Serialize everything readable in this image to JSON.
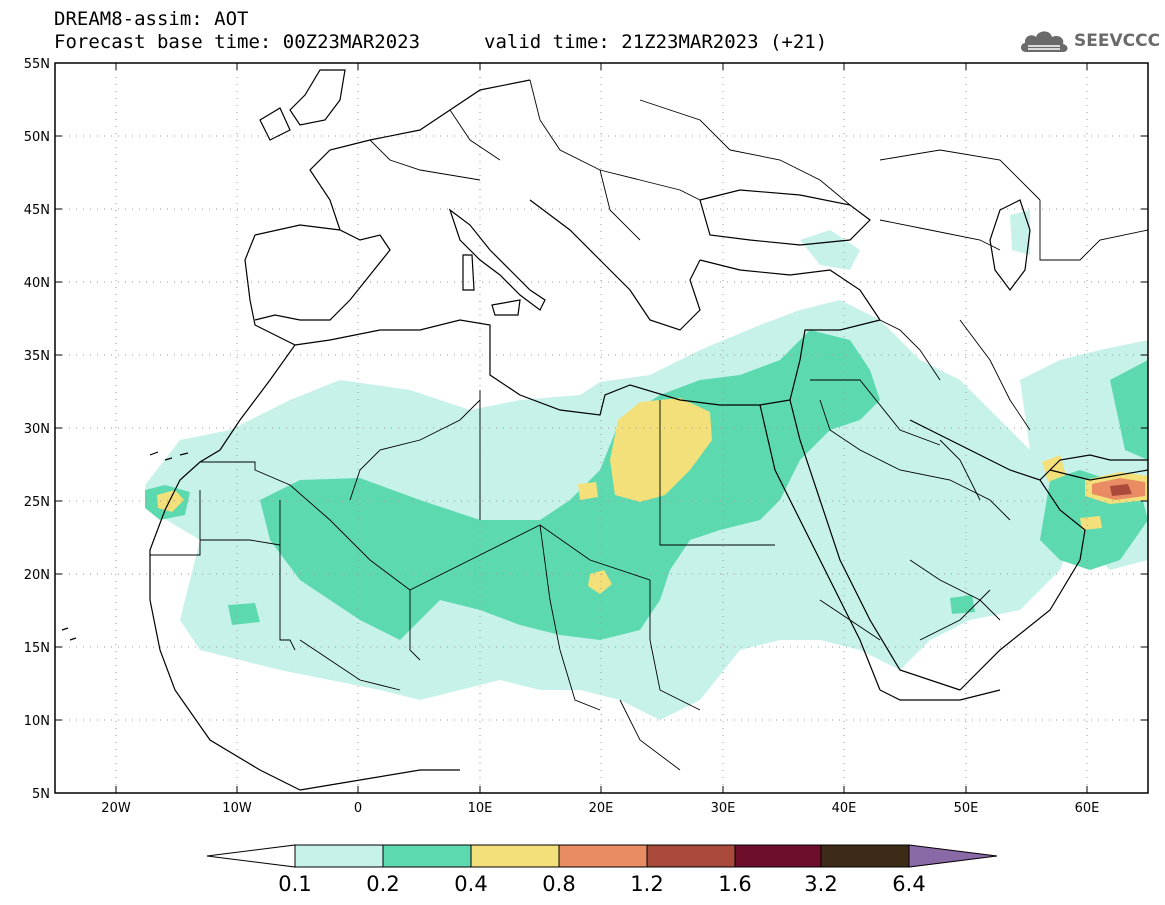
{
  "header": {
    "title_line1": "DREAM8-assim: AOT",
    "title_line2": "Forecast base time: 00Z23MAR2023",
    "valid_time": "valid time: 21Z23MAR2023 (+21)",
    "logo_text": "SEEVCCC",
    "logo_icon": "cloud-icon"
  },
  "map": {
    "lon_range": [
      -25,
      65
    ],
    "lat_range": [
      5,
      55
    ],
    "lat_ticks": [
      {
        "value": 55,
        "label": "55N"
      },
      {
        "value": 50,
        "label": "50N"
      },
      {
        "value": 45,
        "label": "45N"
      },
      {
        "value": 40,
        "label": "40N"
      },
      {
        "value": 35,
        "label": "35N"
      },
      {
        "value": 30,
        "label": "30N"
      },
      {
        "value": 25,
        "label": "25N"
      },
      {
        "value": 20,
        "label": "20N"
      },
      {
        "value": 15,
        "label": "15N"
      },
      {
        "value": 10,
        "label": "10N"
      },
      {
        "value": 5,
        "label": "5N"
      }
    ],
    "lon_ticks": [
      {
        "value": -20,
        "label": "20W"
      },
      {
        "value": -10,
        "label": "10W"
      },
      {
        "value": 0,
        "label": "0"
      },
      {
        "value": 10,
        "label": "10E"
      },
      {
        "value": 20,
        "label": "20E"
      },
      {
        "value": 30,
        "label": "30E"
      },
      {
        "value": 40,
        "label": "40E"
      },
      {
        "value": 50,
        "label": "50E"
      },
      {
        "value": 60,
        "label": "60E"
      }
    ],
    "grid": "dotted"
  },
  "colorbar": {
    "levels": [
      "0.1",
      "0.2",
      "0.4",
      "0.8",
      "1.2",
      "1.6",
      "3.2",
      "6.4"
    ],
    "colors": [
      "#c6f2ea",
      "#5dd9b0",
      "#f3e07a",
      "#e98c64",
      "#a94a3a",
      "#6e0e2a",
      "#3d2a17",
      "#8a6aa6"
    ],
    "low_end_color": "#ffffff"
  },
  "chart_data": {
    "type": "heatmap",
    "title": "DREAM8-assim: AOT",
    "xlabel": "",
    "ylabel": "",
    "xlim": [
      -25,
      65
    ],
    "ylim": [
      5,
      55
    ],
    "levels": [
      0.1,
      0.2,
      0.4,
      0.8,
      1.2,
      1.6,
      3.2,
      6.4
    ],
    "regions": [
      {
        "level": 0.1,
        "name": "",
        "lon": [
          -20,
          40
        ],
        "lat": [
          10,
          35
        ]
      },
      {
        "level": 0.2,
        "name": "",
        "lon": [
          -15,
          40
        ],
        "lat": [
          15,
          33
        ]
      },
      {
        "level": 0.4,
        "name": "",
        "lon": [
          21,
          29
        ],
        "lat": [
          25,
          31
        ]
      },
      {
        "level": 0.4,
        "name": "",
        "lon": [
          -16,
          -14
        ],
        "lat": [
          24.5,
          25.5
        ]
      },
      {
        "level": 0.4,
        "name": "",
        "lon": [
          20,
          22
        ],
        "lat": [
          19,
          20.5
        ]
      },
      {
        "level": 0.8,
        "name": "",
        "lon": [
          60,
          64
        ],
        "lat": [
          24.5,
          25.5
        ]
      },
      {
        "level": 1.2,
        "name": "",
        "lon": [
          61,
          63
        ],
        "lat": [
          24.7,
          25.3
        ]
      }
    ]
  }
}
